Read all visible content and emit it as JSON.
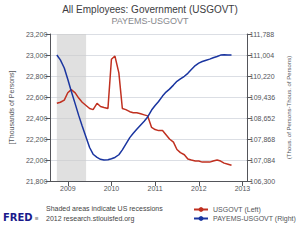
{
  "chart_data": {
    "type": "line",
    "title": "All Employees: Government (USGOVT)",
    "subtitle": "PAYEMS-USGOVT",
    "ylabel": "[Thousands of Persons]",
    "y2label": "(Thous. of Persons-Thous. of Persons)",
    "xlim": [
      2008.6,
      2013.1
    ],
    "xticks": [
      2009,
      2010,
      2011,
      2012,
      2013
    ],
    "ylim": [
      21800,
      23200
    ],
    "yticks": [
      {
        "value": 21800,
        "label": "21,800"
      },
      {
        "value": 22000,
        "label": "22,000"
      },
      {
        "value": 22200,
        "label": "22,200"
      },
      {
        "value": 22400,
        "label": "22,400"
      },
      {
        "value": 22600,
        "label": "22,600"
      },
      {
        "value": 22800,
        "label": "22,800"
      },
      {
        "value": 23000,
        "label": "23,000"
      },
      {
        "value": 23200,
        "label": "23,200"
      }
    ],
    "y2lim": [
      106300,
      111788
    ],
    "y2ticks": [
      {
        "value": 106300,
        "label": "106,300"
      },
      {
        "value": 107084,
        "label": "107,084"
      },
      {
        "value": 107868,
        "label": "107,868"
      },
      {
        "value": 108652,
        "label": "108,652"
      },
      {
        "value": 109436,
        "label": "109,436"
      },
      {
        "value": 110220,
        "label": "110,220"
      },
      {
        "value": 111004,
        "label": "111,004"
      },
      {
        "value": 111788,
        "label": "111,788"
      }
    ],
    "grid": true,
    "legend": "lower right",
    "shaded": [
      [
        2008.75,
        2009.42
      ]
    ],
    "annotations": [
      "FRED",
      "■",
      "Shaded areas indicate US recessions",
      "2012 research.stlouisfed.org"
    ],
    "x": [
      2008.75,
      2008.83,
      2008.92,
      2009.0,
      2009.08,
      2009.17,
      2009.25,
      2009.33,
      2009.5,
      2009.58,
      2009.67,
      2009.75,
      2009.83,
      2009.92,
      2010.0,
      2010.08,
      2010.17,
      2010.25,
      2010.33,
      2010.42,
      2010.5,
      2010.58,
      2010.67,
      2010.75,
      2010.83,
      2010.92,
      2011.0,
      2011.08,
      2011.17,
      2011.25,
      2011.33,
      2011.42,
      2011.5,
      2011.58,
      2011.67,
      2011.75,
      2011.83,
      2011.92,
      2012.0,
      2012.08,
      2012.17,
      2012.25,
      2012.33,
      2012.42,
      2012.5,
      2012.58,
      2012.67,
      2012.75
    ],
    "series": [
      {
        "name": "USGOVT (Left)",
        "color": "#c03020",
        "axis": "y",
        "values": [
          22540,
          22550,
          22570,
          22640,
          22670,
          22640,
          22590,
          22550,
          22490,
          22480,
          22540,
          22510,
          22500,
          22490,
          22960,
          22990,
          22830,
          22490,
          22480,
          22460,
          22450,
          22450,
          22440,
          22430,
          22420,
          22310,
          22290,
          22280,
          22280,
          22240,
          22200,
          22170,
          22100,
          22070,
          22050,
          22010,
          22000,
          21990,
          21990,
          21980,
          21980,
          21980,
          21990,
          22000,
          21990,
          21970,
          21960,
          21950
        ]
      },
      {
        "name": "PAYEMS-USGOVT (Right)",
        "color": "#1a35a0",
        "axis": "y2",
        "values": [
          111004,
          110820,
          110520,
          110100,
          109650,
          109180,
          108750,
          108350,
          107550,
          107300,
          107180,
          107110,
          107084,
          107090,
          107130,
          107180,
          107280,
          107460,
          107680,
          107920,
          108080,
          108230,
          108390,
          108530,
          108690,
          108950,
          109120,
          109270,
          109470,
          109620,
          109730,
          109880,
          110020,
          110110,
          110210,
          110320,
          110460,
          110610,
          110700,
          110760,
          110810,
          110850,
          110900,
          110950,
          111000,
          111010,
          111004,
          111004
        ]
      }
    ]
  }
}
